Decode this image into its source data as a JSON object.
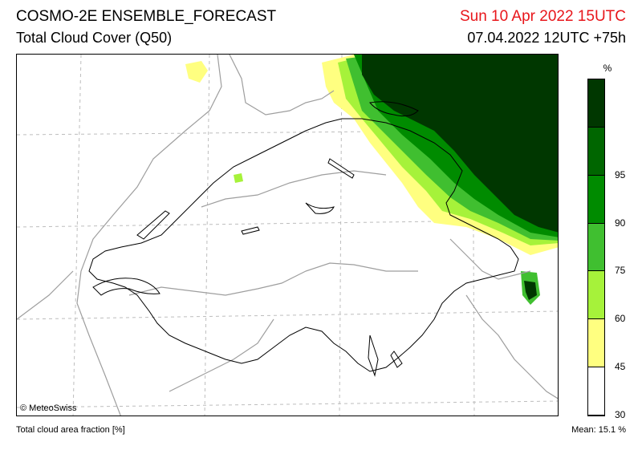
{
  "header": {
    "title": "COSMO-2E ENSEMBLE_FORECAST",
    "subtitle": "Total Cloud Cover (Q50)",
    "valid_time": "Sun 10 Apr 2022 15UTC",
    "run_time": "07.04.2022 12UTC +75h"
  },
  "map": {
    "copyright": "© MeteoSwiss"
  },
  "legend": {
    "unit": "%",
    "bands": [
      {
        "label": "",
        "color": "#003700"
      },
      {
        "label": "95",
        "color": "#006600"
      },
      {
        "label": "90",
        "color": "#008b00"
      },
      {
        "label": "75",
        "color": "#40bf30"
      },
      {
        "label": "60",
        "color": "#a6f23a"
      },
      {
        "label": "45",
        "color": "#ffff80"
      },
      {
        "label": "30",
        "color": "#ffffff"
      }
    ]
  },
  "footer": {
    "variable": "Total cloud area fraction [%]",
    "mean": "Mean:  15.1 %"
  }
}
